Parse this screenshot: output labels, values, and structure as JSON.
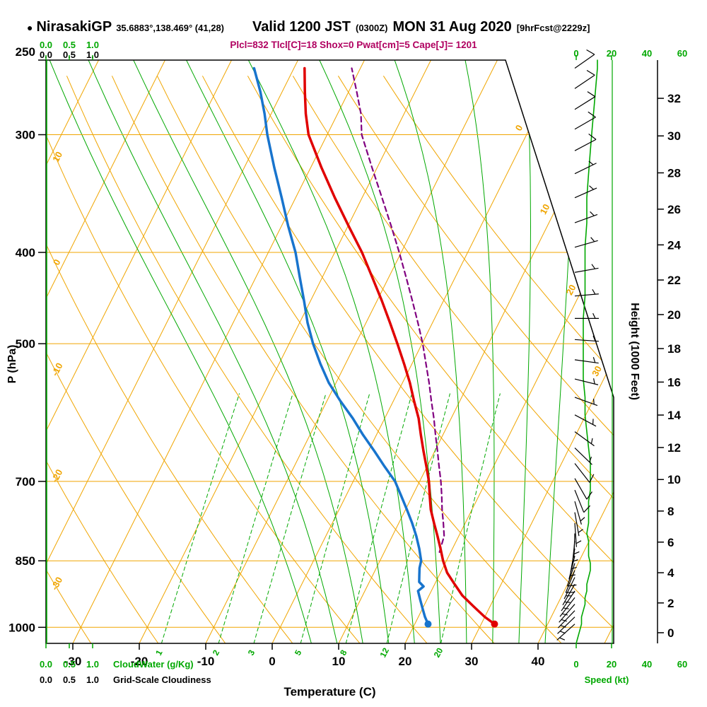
{
  "header": {
    "bullet": "●",
    "station": "NirasakiGP",
    "coords": "35.6883°,138.469° (41,28)",
    "valid_main": "Valid 1200 JST",
    "valid_utc": "(0300Z)",
    "valid_date": "MON 31 Aug 2020",
    "forecast_tag": "[9hrFcst@2229z]",
    "indices": "Plcl=832 Tlcl[C]=18 Shox=0 Pwat[cm]=5 Cape[J]= 1201"
  },
  "axes": {
    "pressure_label": "P (hPa)",
    "pressure_ticks": [
      250,
      300,
      400,
      500,
      700,
      850,
      1000
    ],
    "temp_label": "Temperature (C)",
    "temp_ticks": [
      -30,
      -20,
      -10,
      0,
      10,
      20,
      30,
      40
    ],
    "height_label": "Height (1000 Feet)",
    "height_ticks": [
      0,
      2,
      4,
      6,
      8,
      10,
      12,
      14,
      16,
      18,
      20,
      22,
      24,
      26,
      28,
      30,
      32
    ],
    "speed_label": "Speed (kt)",
    "speed_ticks": [
      0,
      20,
      40,
      60
    ],
    "cloud_scale": [
      "0.0",
      "0.5",
      "1.0"
    ],
    "cloudwater_label": "CloudWater (g/Kg)",
    "cloudiness_label": "Grid-Scale Cloudiness"
  },
  "chart_data": {
    "type": "skewt_logp",
    "pressure_range": [
      250,
      1040
    ],
    "temp_axis_range_c": [
      -30,
      40
    ],
    "height_axis_range_kft": [
      0,
      32
    ],
    "speed_axis_range_kt": [
      0,
      60
    ],
    "pressure_gridlines": [
      300,
      400,
      500,
      700,
      850,
      1000
    ],
    "isotherms": {
      "min": -90,
      "max": 50,
      "step": 10
    },
    "dry_adiabats": {
      "min": -40,
      "max": 90,
      "step": 10
    },
    "isotherm_labels": [
      0,
      10,
      20,
      30
    ],
    "dry_adiabat_labels": [
      10,
      0,
      -10,
      -20,
      -30
    ],
    "mixing_ratio_lines": [
      1,
      2,
      3,
      5,
      8,
      12,
      20
    ],
    "moist_adiabats": [
      4,
      8,
      12,
      16,
      20,
      24,
      28,
      32,
      36,
      40
    ],
    "surface": {
      "p": 992,
      "t": 32,
      "td": 22
    },
    "lcl": {
      "p": 832,
      "t": 18
    },
    "temperature_profile": [
      {
        "p": 992,
        "t": 32
      },
      {
        "p": 975,
        "t": 30
      },
      {
        "p": 950,
        "t": 27.5
      },
      {
        "p": 925,
        "t": 25
      },
      {
        "p": 900,
        "t": 23
      },
      {
        "p": 875,
        "t": 21
      },
      {
        "p": 850,
        "t": 19.5
      },
      {
        "p": 825,
        "t": 18.2
      },
      {
        "p": 800,
        "t": 16.8
      },
      {
        "p": 775,
        "t": 15.3
      },
      {
        "p": 750,
        "t": 13.8
      },
      {
        "p": 725,
        "t": 12.6
      },
      {
        "p": 700,
        "t": 11.4
      },
      {
        "p": 675,
        "t": 9.9
      },
      {
        "p": 650,
        "t": 8.3
      },
      {
        "p": 625,
        "t": 6.7
      },
      {
        "p": 600,
        "t": 5.1
      },
      {
        "p": 575,
        "t": 3.1
      },
      {
        "p": 550,
        "t": 1.1
      },
      {
        "p": 525,
        "t": -1.2
      },
      {
        "p": 500,
        "t": -3.7
      },
      {
        "p": 475,
        "t": -6.4
      },
      {
        "p": 450,
        "t": -9.3
      },
      {
        "p": 425,
        "t": -12.5
      },
      {
        "p": 400,
        "t": -15.9
      },
      {
        "p": 375,
        "t": -19.9
      },
      {
        "p": 350,
        "t": -24.1
      },
      {
        "p": 325,
        "t": -28.4
      },
      {
        "p": 300,
        "t": -32.8
      },
      {
        "p": 285,
        "t": -34.8
      },
      {
        "p": 270,
        "t": -36.6
      },
      {
        "p": 255,
        "t": -38.4
      }
    ],
    "dewpoint_profile": [
      {
        "p": 992,
        "t": 22
      },
      {
        "p": 975,
        "t": 21
      },
      {
        "p": 955,
        "t": 20
      },
      {
        "p": 935,
        "t": 19
      },
      {
        "p": 915,
        "t": 18
      },
      {
        "p": 905,
        "t": 18.5
      },
      {
        "p": 895,
        "t": 17.5
      },
      {
        "p": 880,
        "t": 17
      },
      {
        "p": 865,
        "t": 16.5
      },
      {
        "p": 850,
        "t": 16.2
      },
      {
        "p": 825,
        "t": 15
      },
      {
        "p": 800,
        "t": 13.6
      },
      {
        "p": 775,
        "t": 12
      },
      {
        "p": 750,
        "t": 10.2
      },
      {
        "p": 725,
        "t": 8.3
      },
      {
        "p": 700,
        "t": 6.3
      },
      {
        "p": 675,
        "t": 3.6
      },
      {
        "p": 650,
        "t": 0.9
      },
      {
        "p": 625,
        "t": -2
      },
      {
        "p": 600,
        "t": -4.8
      },
      {
        "p": 575,
        "t": -8
      },
      {
        "p": 550,
        "t": -11.1
      },
      {
        "p": 525,
        "t": -13.8
      },
      {
        "p": 500,
        "t": -16.4
      },
      {
        "p": 475,
        "t": -18.8
      },
      {
        "p": 450,
        "t": -21
      },
      {
        "p": 425,
        "t": -23.4
      },
      {
        "p": 400,
        "t": -25.9
      },
      {
        "p": 375,
        "t": -29
      },
      {
        "p": 350,
        "t": -32.1
      },
      {
        "p": 325,
        "t": -35.5
      },
      {
        "p": 300,
        "t": -39
      },
      {
        "p": 285,
        "t": -41
      },
      {
        "p": 270,
        "t": -43.3
      },
      {
        "p": 255,
        "t": -46
      }
    ],
    "parcel_profile": [
      {
        "p": 832,
        "t": 18.3
      },
      {
        "p": 800,
        "t": 17.8
      },
      {
        "p": 775,
        "t": 16.7
      },
      {
        "p": 750,
        "t": 15.5
      },
      {
        "p": 725,
        "t": 14.4
      },
      {
        "p": 700,
        "t": 13.2
      },
      {
        "p": 675,
        "t": 11.8
      },
      {
        "p": 650,
        "t": 10.4
      },
      {
        "p": 625,
        "t": 8.9
      },
      {
        "p": 600,
        "t": 7.4
      },
      {
        "p": 575,
        "t": 5.7
      },
      {
        "p": 550,
        "t": 4
      },
      {
        "p": 525,
        "t": 2.1
      },
      {
        "p": 500,
        "t": 0.1
      },
      {
        "p": 475,
        "t": -2.2
      },
      {
        "p": 450,
        "t": -4.7
      },
      {
        "p": 425,
        "t": -7.4
      },
      {
        "p": 400,
        "t": -10.3
      },
      {
        "p": 375,
        "t": -13.5
      },
      {
        "p": 350,
        "t": -17
      },
      {
        "p": 325,
        "t": -20.8
      },
      {
        "p": 300,
        "t": -24.8
      },
      {
        "p": 285,
        "t": -26.5
      },
      {
        "p": 270,
        "t": -28.8
      },
      {
        "p": 255,
        "t": -31.3
      }
    ],
    "wind_profile": [
      {
        "p": 255,
        "spd": 12,
        "dir": 55
      },
      {
        "p": 268,
        "spd": 11,
        "dir": 56
      },
      {
        "p": 282,
        "spd": 10,
        "dir": 58
      },
      {
        "p": 296,
        "spd": 9,
        "dir": 60
      },
      {
        "p": 312,
        "spd": 8,
        "dir": 62
      },
      {
        "p": 330,
        "spd": 7,
        "dir": 64
      },
      {
        "p": 350,
        "spd": 6,
        "dir": 66
      },
      {
        "p": 372,
        "spd": 6,
        "dir": 70
      },
      {
        "p": 395,
        "spd": 5,
        "dir": 74
      },
      {
        "p": 420,
        "spd": 5,
        "dir": 80
      },
      {
        "p": 445,
        "spd": 5,
        "dir": 85
      },
      {
        "p": 470,
        "spd": 4,
        "dir": 90
      },
      {
        "p": 495,
        "spd": 4,
        "dir": 94
      },
      {
        "p": 520,
        "spd": 4,
        "dir": 98
      },
      {
        "p": 545,
        "spd": 4,
        "dir": 104
      },
      {
        "p": 570,
        "spd": 5,
        "dir": 110
      },
      {
        "p": 595,
        "spd": 5,
        "dir": 118
      },
      {
        "p": 620,
        "spd": 6,
        "dir": 126
      },
      {
        "p": 645,
        "spd": 7,
        "dir": 134
      },
      {
        "p": 670,
        "spd": 8,
        "dir": 142
      },
      {
        "p": 695,
        "spd": 8,
        "dir": 150
      },
      {
        "p": 715,
        "spd": 8,
        "dir": 158
      },
      {
        "p": 735,
        "spd": 7,
        "dir": 164
      },
      {
        "p": 755,
        "spd": 7,
        "dir": 170
      },
      {
        "p": 775,
        "spd": 7,
        "dir": 176
      },
      {
        "p": 795,
        "spd": 6,
        "dir": 182
      },
      {
        "p": 810,
        "spd": 7,
        "dir": 186
      },
      {
        "p": 825,
        "spd": 7,
        "dir": 190
      },
      {
        "p": 840,
        "spd": 7,
        "dir": 194
      },
      {
        "p": 855,
        "spd": 8,
        "dir": 198
      },
      {
        "p": 870,
        "spd": 8,
        "dir": 202
      },
      {
        "p": 885,
        "spd": 7,
        "dir": 206
      },
      {
        "p": 900,
        "spd": 6,
        "dir": 210
      },
      {
        "p": 915,
        "spd": 6,
        "dir": 214
      },
      {
        "p": 930,
        "spd": 5,
        "dir": 218
      },
      {
        "p": 945,
        "spd": 5,
        "dir": 221
      },
      {
        "p": 960,
        "spd": 4,
        "dir": 224
      },
      {
        "p": 975,
        "spd": 3,
        "dir": 226
      },
      {
        "p": 992,
        "spd": 3,
        "dir": 228
      }
    ],
    "colors": {
      "grid": "#f0a500",
      "green": "#00a800",
      "temperature": "#e00000",
      "dewpoint": "#1874cd",
      "parcel": "#800080",
      "indices": "#b00060",
      "barbs": "#000000"
    }
  }
}
